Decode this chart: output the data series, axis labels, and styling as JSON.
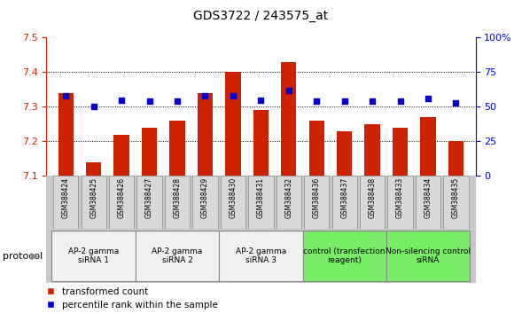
{
  "title": "GDS3722 / 243575_at",
  "samples": [
    "GSM388424",
    "GSM388425",
    "GSM388426",
    "GSM388427",
    "GSM388428",
    "GSM388429",
    "GSM388430",
    "GSM388431",
    "GSM388432",
    "GSM388436",
    "GSM388437",
    "GSM388438",
    "GSM388433",
    "GSM388434",
    "GSM388435"
  ],
  "transformed_count": [
    7.34,
    7.14,
    7.22,
    7.24,
    7.26,
    7.34,
    7.4,
    7.29,
    7.43,
    7.26,
    7.23,
    7.25,
    7.24,
    7.27,
    7.2
  ],
  "percentile_rank": [
    58,
    50,
    55,
    54,
    54,
    58,
    58,
    55,
    62,
    54,
    54,
    54,
    54,
    56,
    53
  ],
  "ylim_left": [
    7.1,
    7.5
  ],
  "ylim_right": [
    0,
    100
  ],
  "yticks_left": [
    7.1,
    7.2,
    7.3,
    7.4,
    7.5
  ],
  "yticks_right": [
    0,
    25,
    50,
    75,
    100
  ],
  "bar_color": "#cc2200",
  "dot_color": "#0000cc",
  "background_color": "#ffffff",
  "groups": [
    {
      "label": "AP-2 gamma\nsiRNA 1",
      "indices": [
        0,
        1,
        2
      ],
      "green": false
    },
    {
      "label": "AP-2 gamma\nsiRNA 2",
      "indices": [
        3,
        4,
        5
      ],
      "green": false
    },
    {
      "label": "AP-2 gamma\nsiRNA 3",
      "indices": [
        6,
        7,
        8
      ],
      "green": false
    },
    {
      "label": "control (transfection\nreagent)",
      "indices": [
        9,
        10,
        11
      ],
      "green": true
    },
    {
      "label": "Non-silencing control\nsiRNA",
      "indices": [
        12,
        13,
        14
      ],
      "green": true
    }
  ],
  "protocol_label": "protocol",
  "legend_bar_label": "transformed count",
  "legend_dot_label": "percentile rank within the sample",
  "right_axis_color": "#0000cc",
  "left_axis_color": "#cc2200",
  "title_fontsize": 10,
  "tick_fontsize": 8,
  "bar_width": 0.55,
  "grid_color": "black",
  "grid_linestyle": ":",
  "grid_linewidth": 0.7,
  "sample_box_color": "#d8d8d8",
  "group_white_color": "#f0f0f0",
  "group_green_color": "#77ee66"
}
